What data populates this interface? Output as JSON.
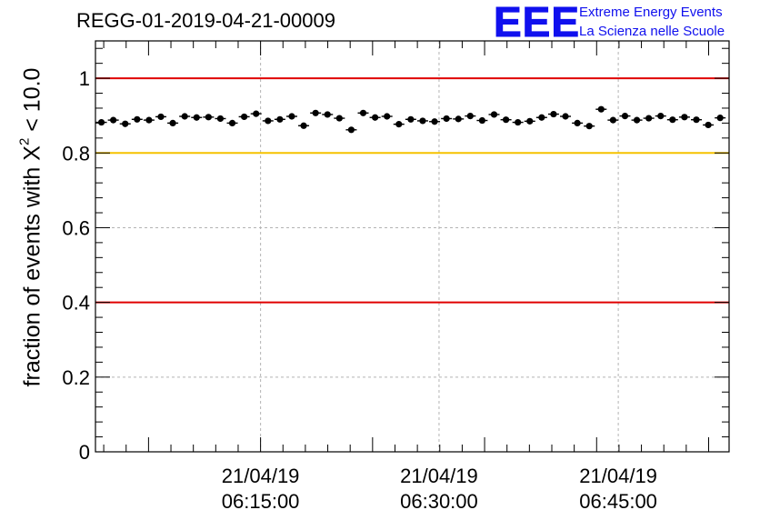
{
  "header": {
    "run_id": "REGG-01-2019-04-21-00009"
  },
  "logo": {
    "mark": "EEE",
    "line1": "Extreme Energy Events",
    "line2": "La Scienza nelle Scuole"
  },
  "colors": {
    "threshold_red": "#e00000",
    "threshold_yellow": "#f5c200",
    "logo_blue": "#1010ee",
    "grid": "#b4b4b4",
    "marker": "#000000"
  },
  "chart_data": {
    "type": "scatter",
    "title": "REGG-01-2019-04-21-00009",
    "xlabel": "",
    "ylabel_prefix": "fraction of events with X",
    "ylabel_sup": "2",
    "ylabel_suffix": " < 10.0",
    "ylim": [
      0,
      1.1
    ],
    "xlim_minutes": [
      0,
      85.2
    ],
    "yticks": [
      0,
      0.2,
      0.4,
      0.6,
      0.8,
      1
    ],
    "ytick_labels": [
      "0",
      "0.2",
      "0.4",
      "0.6",
      "0.8",
      "1"
    ],
    "xticks": [
      {
        "minute": 22.2,
        "date": "21/04/19",
        "time": "06:15:00"
      },
      {
        "minute": 46.2,
        "date": "21/04/19",
        "time": "06:30:00"
      },
      {
        "minute": 70.3,
        "date": "21/04/19",
        "time": "06:45:00"
      }
    ],
    "threshold_lines": [
      {
        "y": 1.0,
        "color": "red"
      },
      {
        "y": 0.8,
        "color": "yellow"
      },
      {
        "y": 0.4,
        "color": "red"
      }
    ],
    "grid": true,
    "series": [
      {
        "name": "fraction",
        "x_minutes": [
          0.8,
          2.4,
          4.0,
          5.6,
          7.2,
          8.8,
          10.4,
          12.0,
          13.6,
          15.2,
          16.8,
          18.4,
          20.0,
          21.6,
          23.2,
          24.8,
          26.4,
          28.0,
          29.6,
          31.2,
          32.8,
          34.4,
          36.0,
          37.6,
          39.2,
          40.8,
          42.4,
          44.0,
          45.6,
          47.2,
          48.8,
          50.4,
          52.0,
          53.6,
          55.2,
          56.8,
          58.4,
          60.0,
          61.6,
          63.2,
          64.8,
          66.4,
          68.0,
          69.6,
          71.2,
          72.8,
          74.4,
          76.0,
          77.6,
          79.2,
          80.8,
          82.4,
          84.0
        ],
        "values": [
          0.882,
          0.888,
          0.878,
          0.89,
          0.888,
          0.897,
          0.88,
          0.898,
          0.895,
          0.896,
          0.892,
          0.88,
          0.897,
          0.905,
          0.886,
          0.89,
          0.898,
          0.873,
          0.907,
          0.903,
          0.893,
          0.862,
          0.907,
          0.895,
          0.898,
          0.877,
          0.89,
          0.886,
          0.884,
          0.892,
          0.891,
          0.899,
          0.887,
          0.903,
          0.889,
          0.882,
          0.885,
          0.895,
          0.904,
          0.898,
          0.88,
          0.872,
          0.917,
          0.888,
          0.899,
          0.888,
          0.893,
          0.899,
          0.889,
          0.896,
          0.889,
          0.875,
          0.894
        ],
        "errors": [
          0.006,
          0.006,
          0.006,
          0.006,
          0.006,
          0.006,
          0.006,
          0.006,
          0.006,
          0.006,
          0.006,
          0.006,
          0.006,
          0.006,
          0.006,
          0.006,
          0.006,
          0.006,
          0.006,
          0.006,
          0.006,
          0.006,
          0.006,
          0.006,
          0.006,
          0.006,
          0.006,
          0.006,
          0.006,
          0.006,
          0.006,
          0.006,
          0.006,
          0.006,
          0.006,
          0.006,
          0.006,
          0.006,
          0.006,
          0.006,
          0.006,
          0.006,
          0.006,
          0.006,
          0.006,
          0.006,
          0.006,
          0.006,
          0.006,
          0.006,
          0.006,
          0.006,
          0.006
        ]
      }
    ]
  }
}
